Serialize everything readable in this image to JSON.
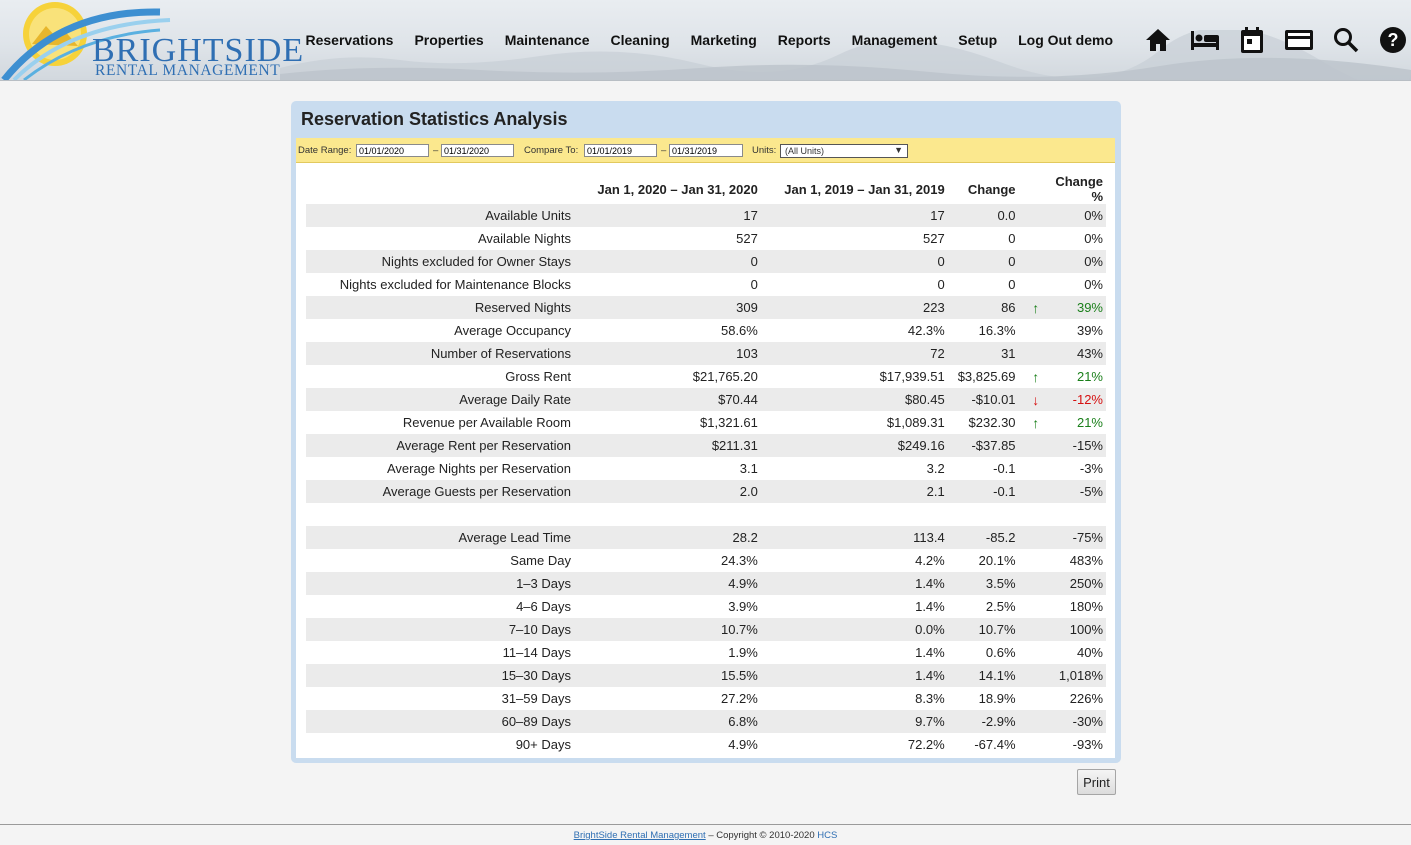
{
  "logo": {
    "line1": "BRIGHTSIDE",
    "line2": "RENTAL MANAGEMENT"
  },
  "nav": [
    "Reservations",
    "Properties",
    "Maintenance",
    "Cleaning",
    "Marketing",
    "Reports",
    "Management",
    "Setup",
    "Log Out demo"
  ],
  "icons": [
    "home-icon",
    "bed-icon",
    "calendar-icon",
    "credit-card-icon",
    "search-icon",
    "help-icon"
  ],
  "panel": {
    "title": "Reservation Statistics Analysis"
  },
  "filters": {
    "date_range_label": "Date Range:",
    "date_from": "01/01/2020",
    "dash1": "–",
    "date_to": "01/31/2020",
    "compare_label": "Compare To:",
    "compare_from": "01/01/2019",
    "dash2": "–",
    "compare_to": "01/31/2019",
    "units_label": "Units:",
    "units_value": "(All Units)"
  },
  "table": {
    "headers": [
      "",
      "Jan 1, 2020 – Jan 31, 2020",
      "Jan 1, 2019 – Jan 31, 2019",
      "Change",
      "",
      "Change %"
    ],
    "rows": [
      {
        "label": "Available Units",
        "cur": "17",
        "prev": "17",
        "change": "0.0",
        "arrow": "",
        "pct": "0%",
        "trend": ""
      },
      {
        "label": "Available Nights",
        "cur": "527",
        "prev": "527",
        "change": "0",
        "arrow": "",
        "pct": "0%",
        "trend": ""
      },
      {
        "label": "Nights excluded for Owner Stays",
        "cur": "0",
        "prev": "0",
        "change": "0",
        "arrow": "",
        "pct": "0%",
        "trend": ""
      },
      {
        "label": "Nights excluded for Maintenance Blocks",
        "cur": "0",
        "prev": "0",
        "change": "0",
        "arrow": "",
        "pct": "0%",
        "trend": ""
      },
      {
        "label": "Reserved Nights",
        "cur": "309",
        "prev": "223",
        "change": "86",
        "arrow": "↑",
        "pct": "39%",
        "trend": "up"
      },
      {
        "label": "Average Occupancy",
        "cur": "58.6%",
        "prev": "42.3%",
        "change": "16.3%",
        "arrow": "",
        "pct": "39%",
        "trend": ""
      },
      {
        "label": "Number of Reservations",
        "cur": "103",
        "prev": "72",
        "change": "31",
        "arrow": "",
        "pct": "43%",
        "trend": ""
      },
      {
        "label": "Gross Rent",
        "cur": "$21,765.20",
        "prev": "$17,939.51",
        "change": "$3,825.69",
        "arrow": "↑",
        "pct": "21%",
        "trend": "up"
      },
      {
        "label": "Average Daily Rate",
        "cur": "$70.44",
        "prev": "$80.45",
        "change": "-$10.01",
        "arrow": "↓",
        "pct": "-12%",
        "trend": "down"
      },
      {
        "label": "Revenue per Available Room",
        "cur": "$1,321.61",
        "prev": "$1,089.31",
        "change": "$232.30",
        "arrow": "↑",
        "pct": "21%",
        "trend": "up"
      },
      {
        "label": "Average Rent per Reservation",
        "cur": "$211.31",
        "prev": "$249.16",
        "change": "-$37.85",
        "arrow": "",
        "pct": "-15%",
        "trend": ""
      },
      {
        "label": "Average Nights per Reservation",
        "cur": "3.1",
        "prev": "3.2",
        "change": "-0.1",
        "arrow": "",
        "pct": "-3%",
        "trend": ""
      },
      {
        "label": "Average Guests per Reservation",
        "cur": "2.0",
        "prev": "2.1",
        "change": "-0.1",
        "arrow": "",
        "pct": "-5%",
        "trend": ""
      },
      {
        "label": "",
        "cur": "",
        "prev": "",
        "change": "",
        "arrow": "",
        "pct": "",
        "trend": ""
      },
      {
        "label": "Average Lead Time",
        "cur": "28.2",
        "prev": "113.4",
        "change": "-85.2",
        "arrow": "",
        "pct": "-75%",
        "trend": ""
      },
      {
        "label": "Same Day",
        "cur": "24.3%",
        "prev": "4.2%",
        "change": "20.1%",
        "arrow": "",
        "pct": "483%",
        "trend": ""
      },
      {
        "label": "1–3 Days",
        "cur": "4.9%",
        "prev": "1.4%",
        "change": "3.5%",
        "arrow": "",
        "pct": "250%",
        "trend": ""
      },
      {
        "label": "4–6 Days",
        "cur": "3.9%",
        "prev": "1.4%",
        "change": "2.5%",
        "arrow": "",
        "pct": "180%",
        "trend": ""
      },
      {
        "label": "7–10 Days",
        "cur": "10.7%",
        "prev": "0.0%",
        "change": "10.7%",
        "arrow": "",
        "pct": "100%",
        "trend": ""
      },
      {
        "label": "11–14 Days",
        "cur": "1.9%",
        "prev": "1.4%",
        "change": "0.6%",
        "arrow": "",
        "pct": "40%",
        "trend": ""
      },
      {
        "label": "15–30 Days",
        "cur": "15.5%",
        "prev": "1.4%",
        "change": "14.1%",
        "arrow": "",
        "pct": "1,018%",
        "trend": ""
      },
      {
        "label": "31–59 Days",
        "cur": "27.2%",
        "prev": "8.3%",
        "change": "18.9%",
        "arrow": "",
        "pct": "226%",
        "trend": ""
      },
      {
        "label": "60–89 Days",
        "cur": "6.8%",
        "prev": "9.7%",
        "change": "-2.9%",
        "arrow": "",
        "pct": "-30%",
        "trend": ""
      },
      {
        "label": "90+ Days",
        "cur": "4.9%",
        "prev": "72.2%",
        "change": "-67.4%",
        "arrow": "",
        "pct": "-93%",
        "trend": ""
      }
    ]
  },
  "print_label": "Print",
  "footer": {
    "link": "BrightSide Rental Management",
    "sep": " – ",
    "copyright": "Copyright © 2010-2020 ",
    "hcs": "HCS"
  },
  "colors": {
    "up": "#1a7f1a",
    "down": "#d61010",
    "brand": "#2f6fb3",
    "filter_bar": "#fbe88e",
    "panel": "#c9dcef"
  }
}
